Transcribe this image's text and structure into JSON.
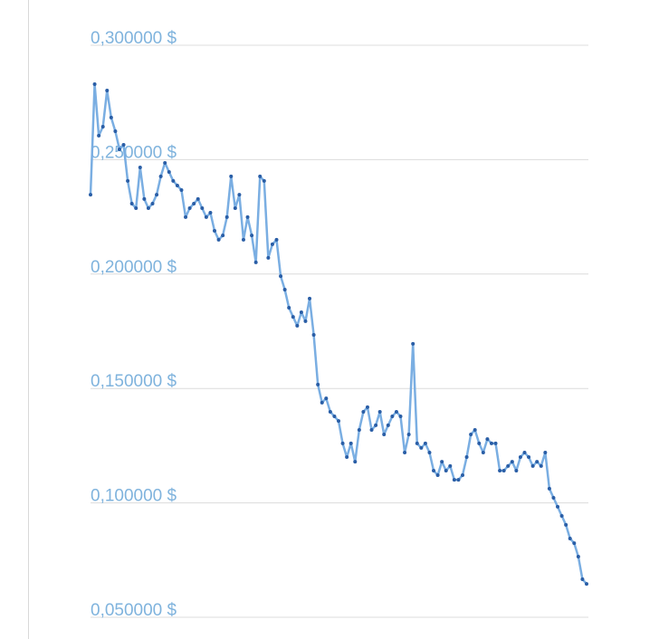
{
  "chart_data": {
    "type": "line",
    "values": [
      0.2347,
      0.283,
      0.2605,
      0.2644,
      0.2802,
      0.2684,
      0.2624,
      0.2545,
      0.2565,
      0.2407,
      0.2308,
      0.2288,
      0.2466,
      0.2328,
      0.2288,
      0.2308,
      0.2347,
      0.2427,
      0.2486,
      0.2446,
      0.2407,
      0.2387,
      0.2367,
      0.2249,
      0.2288,
      0.2308,
      0.2328,
      0.2288,
      0.2249,
      0.2268,
      0.2189,
      0.215,
      0.2169,
      0.2249,
      0.2427,
      0.2288,
      0.2347,
      0.215,
      0.2249,
      0.2169,
      0.2051,
      0.2427,
      0.2407,
      0.2071,
      0.213,
      0.215,
      0.1991,
      0.1932,
      0.1853,
      0.1813,
      0.1774,
      0.1833,
      0.1794,
      0.1893,
      0.1734,
      0.1517,
      0.1438,
      0.1457,
      0.1398,
      0.1378,
      0.1358,
      0.126,
      0.12,
      0.126,
      0.118,
      0.1319,
      0.1398,
      0.1418,
      0.1319,
      0.1339,
      0.1398,
      0.1299,
      0.1339,
      0.1378,
      0.1398,
      0.1378,
      0.122,
      0.1299,
      0.1695,
      0.126,
      0.124,
      0.126,
      0.122,
      0.1141,
      0.1121,
      0.118,
      0.1141,
      0.1161,
      0.1101,
      0.1101,
      0.1121,
      0.12,
      0.1299,
      0.1319,
      0.126,
      0.122,
      0.1279,
      0.126,
      0.126,
      0.1141,
      0.1141,
      0.1161,
      0.118,
      0.1141,
      0.12,
      0.122,
      0.12,
      0.1161,
      0.118,
      0.1161,
      0.122,
      0.1062,
      0.1022,
      0.0983,
      0.0943,
      0.0904,
      0.0844,
      0.0824,
      0.0765,
      0.0666,
      0.0646
    ],
    "color": "#7aaee2",
    "marker_color": "#2a5ea6",
    "ylim": [
      0.05,
      0.3
    ],
    "yticks": [
      {
        "value": 0.05,
        "label": "0,050000 $"
      },
      {
        "value": 0.1,
        "label": "0,100000 $"
      },
      {
        "value": 0.15,
        "label": "0,150000 $"
      },
      {
        "value": 0.2,
        "label": "0,200000 $"
      },
      {
        "value": 0.25,
        "label": "0,250000 $"
      },
      {
        "value": 0.3,
        "label": "0,300000 $"
      }
    ],
    "grid": true
  }
}
